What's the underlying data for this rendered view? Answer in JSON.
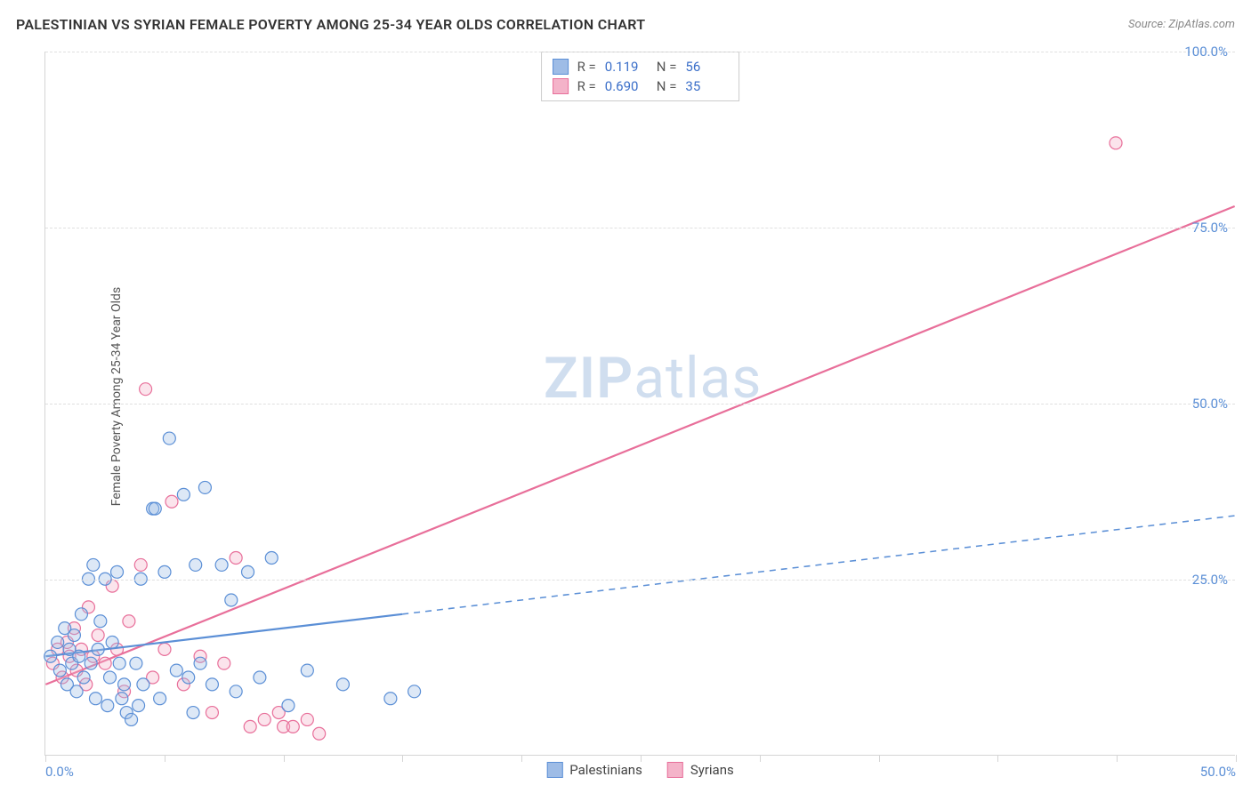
{
  "title": "PALESTINIAN VS SYRIAN FEMALE POVERTY AMONG 25-34 YEAR OLDS CORRELATION CHART",
  "source": "Source: ZipAtlas.com",
  "y_axis_label": "Female Poverty Among 25-34 Year Olds",
  "chart": {
    "type": "scatter",
    "xlim": [
      0,
      50
    ],
    "ylim": [
      0,
      100
    ],
    "xticks": [
      0,
      50
    ],
    "xtick_labels": [
      "0.0%",
      "50.0%"
    ],
    "xtick_marks": [
      0,
      5,
      10,
      15,
      20,
      25,
      30,
      35,
      40,
      45,
      50
    ],
    "yticks": [
      25,
      50,
      75,
      100
    ],
    "ytick_labels": [
      "25.0%",
      "50.0%",
      "75.0%",
      "100.0%"
    ],
    "gridline_color": "#e0e0e0",
    "axis_color": "#d5d5d5",
    "background_color": "#ffffff",
    "marker_radius": 7,
    "marker_fill_opacity": 0.35,
    "marker_stroke_width": 1.2,
    "line_width": 2.2
  },
  "watermark": {
    "text_bold": "ZIP",
    "text_rest": "atlas"
  },
  "series": {
    "palestinians": {
      "label": "Palestinians",
      "color_stroke": "#5b8fd6",
      "color_fill": "#9ebce6",
      "r": "0.119",
      "n": "56",
      "trend": {
        "x1": 0,
        "y1": 14,
        "x2": 15,
        "y2": 20,
        "extend_x2": 50,
        "extend_y2": 34,
        "dash_after_data": true
      },
      "points": [
        [
          0.2,
          14
        ],
        [
          0.5,
          16
        ],
        [
          0.6,
          12
        ],
        [
          0.8,
          18
        ],
        [
          0.9,
          10
        ],
        [
          1.0,
          15
        ],
        [
          1.1,
          13
        ],
        [
          1.2,
          17
        ],
        [
          1.3,
          9
        ],
        [
          1.4,
          14
        ],
        [
          1.5,
          20
        ],
        [
          1.6,
          11
        ],
        [
          1.8,
          25
        ],
        [
          1.9,
          13
        ],
        [
          2.0,
          27
        ],
        [
          2.1,
          8
        ],
        [
          2.2,
          15
        ],
        [
          2.3,
          19
        ],
        [
          2.5,
          25
        ],
        [
          2.6,
          7
        ],
        [
          2.7,
          11
        ],
        [
          2.8,
          16
        ],
        [
          3.0,
          26
        ],
        [
          3.1,
          13
        ],
        [
          3.2,
          8
        ],
        [
          3.3,
          10
        ],
        [
          3.4,
          6
        ],
        [
          3.6,
          5
        ],
        [
          3.8,
          13
        ],
        [
          3.9,
          7
        ],
        [
          4.0,
          25
        ],
        [
          4.1,
          10
        ],
        [
          4.5,
          35
        ],
        [
          4.6,
          35
        ],
        [
          4.8,
          8
        ],
        [
          5.0,
          26
        ],
        [
          5.2,
          45
        ],
        [
          5.5,
          12
        ],
        [
          5.8,
          37
        ],
        [
          6.0,
          11
        ],
        [
          6.2,
          6
        ],
        [
          6.3,
          27
        ],
        [
          6.5,
          13
        ],
        [
          6.7,
          38
        ],
        [
          7.0,
          10
        ],
        [
          7.4,
          27
        ],
        [
          7.8,
          22
        ],
        [
          8.0,
          9
        ],
        [
          8.5,
          26
        ],
        [
          9.0,
          11
        ],
        [
          9.5,
          28
        ],
        [
          10.2,
          7
        ],
        [
          11.0,
          12
        ],
        [
          12.5,
          10
        ],
        [
          14.5,
          8
        ],
        [
          15.5,
          9
        ]
      ]
    },
    "syrians": {
      "label": "Syrians",
      "color_stroke": "#e86f9a",
      "color_fill": "#f4b3c9",
      "r": "0.690",
      "n": "35",
      "trend": {
        "x1": 0,
        "y1": 10,
        "x2": 50,
        "y2": 78,
        "dash_after_data": false
      },
      "points": [
        [
          0.3,
          13
        ],
        [
          0.5,
          15
        ],
        [
          0.7,
          11
        ],
        [
          0.9,
          16
        ],
        [
          1.0,
          14
        ],
        [
          1.2,
          18
        ],
        [
          1.3,
          12
        ],
        [
          1.5,
          15
        ],
        [
          1.7,
          10
        ],
        [
          1.8,
          21
        ],
        [
          2.0,
          14
        ],
        [
          2.2,
          17
        ],
        [
          2.5,
          13
        ],
        [
          2.8,
          24
        ],
        [
          3.0,
          15
        ],
        [
          3.3,
          9
        ],
        [
          3.5,
          19
        ],
        [
          4.0,
          27
        ],
        [
          4.2,
          52
        ],
        [
          4.5,
          11
        ],
        [
          5.0,
          15
        ],
        [
          5.3,
          36
        ],
        [
          5.8,
          10
        ],
        [
          6.5,
          14
        ],
        [
          7.0,
          6
        ],
        [
          7.5,
          13
        ],
        [
          8.0,
          28
        ],
        [
          8.6,
          4
        ],
        [
          9.2,
          5
        ],
        [
          9.8,
          6
        ],
        [
          10.0,
          4
        ],
        [
          10.4,
          4
        ],
        [
          11.0,
          5
        ],
        [
          11.5,
          3
        ],
        [
          45.0,
          87
        ]
      ]
    }
  },
  "stats_box": {
    "rows": [
      {
        "swatch_series": "palestinians",
        "r_label": "R =",
        "n_label": "N ="
      },
      {
        "swatch_series": "syrians",
        "r_label": "R =",
        "n_label": "N ="
      }
    ]
  },
  "colors": {
    "tick_label": "#5b8fd6",
    "text": "#333333",
    "watermark": "#b8cde8"
  }
}
